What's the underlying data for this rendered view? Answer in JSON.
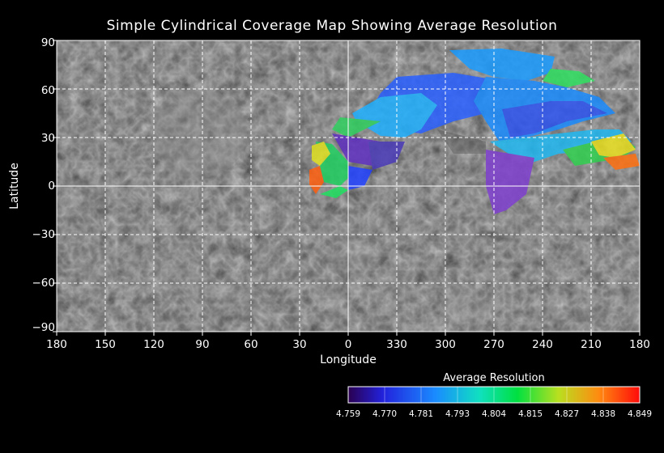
{
  "title": "Simple Cylindrical Coverage Map Showing Average Resolution",
  "xlabel": "Longitude",
  "ylabel": "Latitude",
  "x_ticks": [
    "180",
    "150",
    "120",
    "90",
    "60",
    "30",
    "0",
    "330",
    "300",
    "270",
    "240",
    "210",
    "180"
  ],
  "y_ticks": [
    "90",
    "60",
    "30",
    "0",
    "−30",
    "−60",
    "−90"
  ],
  "colorbar": {
    "title": "Average Resolution",
    "ticks": [
      "4.759",
      "4.770",
      "4.781",
      "4.793",
      "4.804",
      "4.815",
      "4.827",
      "4.838",
      "4.849"
    ],
    "colors": [
      "#2a0060",
      "#2020e0",
      "#1a8cff",
      "#20e0d0",
      "#00e060",
      "#30d020",
      "#c8e020",
      "#ff8a10",
      "#ff1010"
    ]
  },
  "chart_data": {
    "type": "map",
    "projection": "simple-cylindrical",
    "xlim": [
      180,
      -180
    ],
    "ylim": [
      -90,
      90
    ],
    "grid": true,
    "legend": "bottom-right colorbar"
  }
}
